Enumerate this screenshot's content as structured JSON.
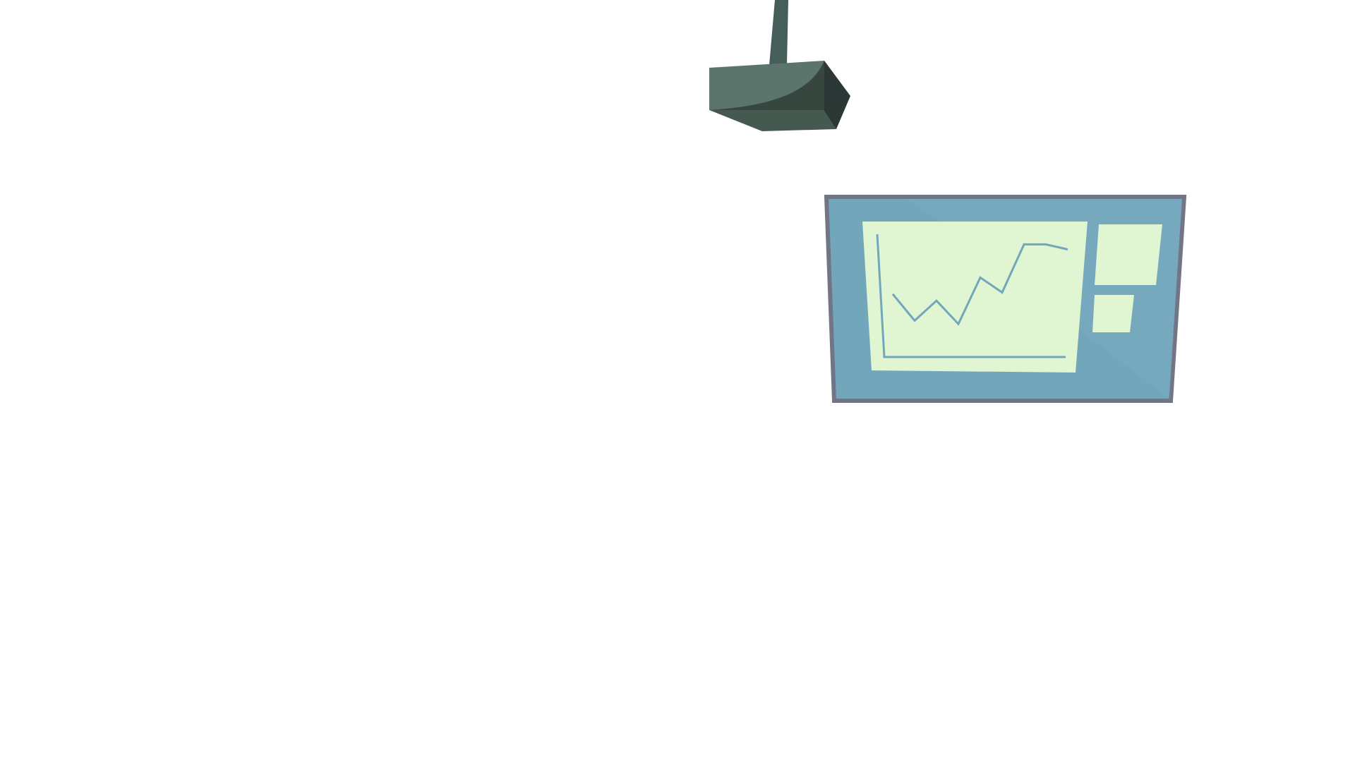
{
  "scene": {
    "background": "#ffffff",
    "projector": {
      "icon": "ceiling-projector-icon",
      "colors": {
        "mount_pole": "#465e59",
        "top_face": "#5b746c",
        "front_shadow": "#37463f",
        "bottom_face": "#465951",
        "side_dark": "#2c3836"
      }
    },
    "screen": {
      "icon": "projection-screen-icon",
      "colors": {
        "frame": "#727585",
        "panel": "#72a6bb",
        "panel_highlight": "#7aabc0",
        "content": "#e0f5d1",
        "chart_line": "#72a6bb"
      },
      "chart_data": {
        "type": "line",
        "title": "",
        "xlabel": "",
        "ylabel": "",
        "series": [
          {
            "x": [
              1,
              2,
              3,
              4,
              5,
              6,
              7,
              8,
              9
            ],
            "values": [
              3.8,
              2.2,
              3.4,
              2.0,
              4.8,
              3.9,
              6.8,
              6.8,
              6.5
            ]
          }
        ],
        "ylim": [
          0,
          7.5
        ],
        "grid": false
      },
      "side_panels": [
        {
          "id": "panel-top"
        },
        {
          "id": "panel-bottom"
        }
      ]
    }
  }
}
